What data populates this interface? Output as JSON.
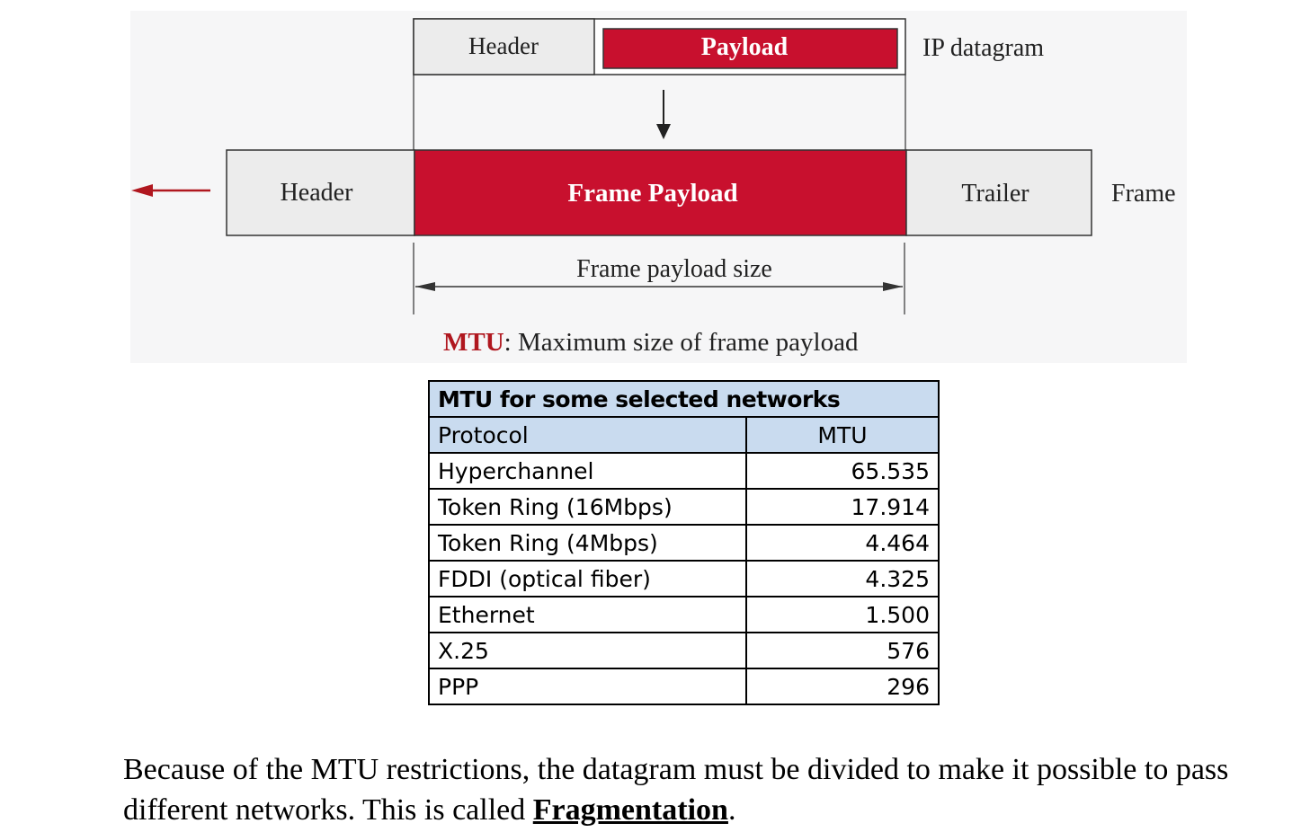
{
  "diagram": {
    "ip_header_label": "Header",
    "ip_payload_label": "Payload",
    "ip_datagram_label": "IP datagram",
    "frame_header_label": "Header",
    "frame_payload_label": "Frame Payload",
    "frame_trailer_label": "Trailer",
    "frame_label": "Frame",
    "payload_size_label": "Frame payload size",
    "mtu_term": "MTU",
    "mtu_definition": ": Maximum size of frame payload",
    "colors": {
      "payload_red": "#c8102e",
      "box_gray": "#ececec",
      "arrow_red": "#b0171f"
    }
  },
  "table": {
    "title": "MTU for some selected networks",
    "columns": [
      "Protocol",
      "MTU"
    ],
    "rows": [
      {
        "protocol": "Hyperchannel",
        "mtu": "65.535"
      },
      {
        "protocol": "Token Ring (16Mbps)",
        "mtu": "17.914"
      },
      {
        "protocol": "Token Ring (4Mbps)",
        "mtu": "4.464"
      },
      {
        "protocol": "FDDI (optical fiber)",
        "mtu": "4.325"
      },
      {
        "protocol": "Ethernet",
        "mtu": "1.500"
      },
      {
        "protocol": "X.25",
        "mtu": "576"
      },
      {
        "protocol": "PPP",
        "mtu": "296"
      }
    ],
    "header_color": "#c9dbef"
  },
  "footnote": {
    "text_before": "Because of the MTU restrictions, the datagram must be divided to make it possible to pass different networks. This is called ",
    "term": "Fragmentation",
    "text_after": "."
  }
}
